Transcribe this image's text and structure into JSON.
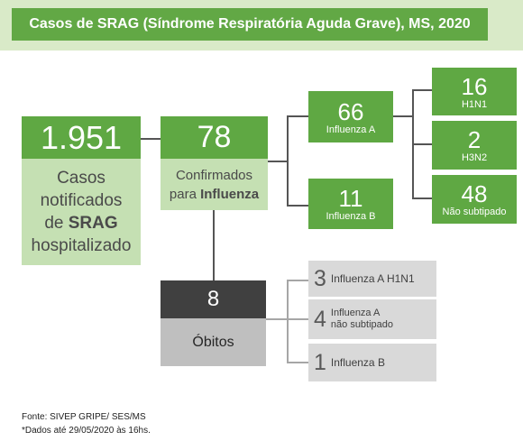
{
  "title": "Casos de SRAG (Síndrome Respiratória Aguda Grave), MS, 2020",
  "notified": {
    "value": "1.951",
    "line1": "Casos",
    "line2": "notificados",
    "line3_pre": "de ",
    "line3_bold": "SRAG",
    "line4": "hospitalizado"
  },
  "confirmed": {
    "value": "78",
    "line1": "Confirmados",
    "line2_pre": "para ",
    "line2_bold": "Influenza"
  },
  "flu_a": {
    "value": "66",
    "label": "Influenza A"
  },
  "flu_b": {
    "value": "11",
    "label": "Influenza B"
  },
  "h1n1": {
    "value": "16",
    "label": "H1N1"
  },
  "h3n2": {
    "value": "2",
    "label": "H3N2"
  },
  "not_subtyped": {
    "value": "48",
    "label": "Não subtipado"
  },
  "deaths": {
    "value": "8",
    "label": "Óbitos"
  },
  "death_breakdown": [
    {
      "value": "3",
      "label": "Influenza A H1N1"
    },
    {
      "value": "4",
      "label_line1": "Influenza A",
      "label_line2": "não subtipado"
    },
    {
      "value": "1",
      "label": "Influenza B"
    }
  ],
  "footer": {
    "source": "Fonte: SIVEP GRIPE/ SES/MS",
    "note": "*Dados até 29/05/2020 às 16hs."
  },
  "colors": {
    "dark_green": "#5fa843",
    "light_green": "#c5e0b3",
    "banner": "#d9eac8",
    "dark_box": "#404040",
    "grey_box": "#d9d9d9"
  }
}
